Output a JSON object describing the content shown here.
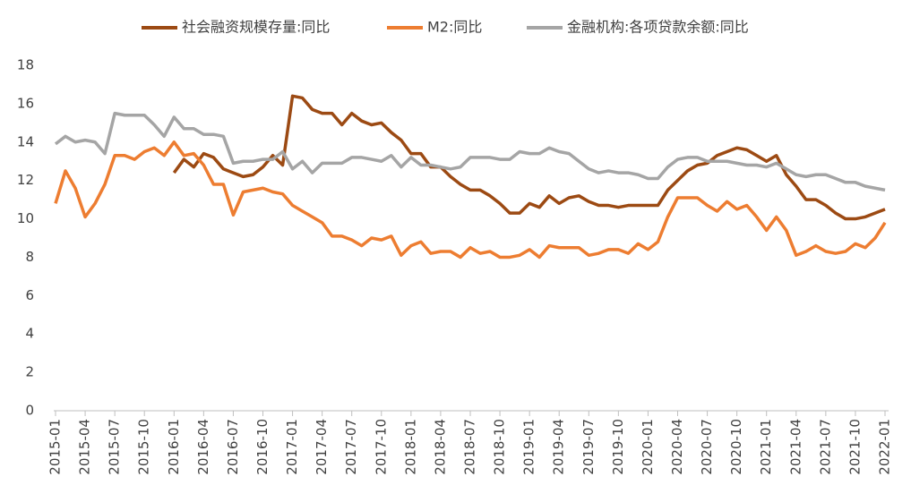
{
  "chart_data": {
    "type": "line",
    "categories": [
      "2015-01",
      null,
      null,
      "2015-04",
      null,
      null,
      "2015-07",
      null,
      null,
      "2015-10",
      null,
      null,
      "2016-01",
      null,
      null,
      "2016-04",
      null,
      null,
      "2016-07",
      null,
      null,
      "2016-10",
      null,
      null,
      "2017-01",
      null,
      null,
      "2017-04",
      null,
      null,
      "2017-07",
      null,
      null,
      "2017-10",
      null,
      null,
      "2018-01",
      null,
      null,
      "2018-04",
      null,
      null,
      "2018-07",
      null,
      null,
      "2018-10",
      null,
      null,
      "2019-01",
      null,
      null,
      "2019-04",
      null,
      null,
      "2019-07",
      null,
      null,
      "2019-10",
      null,
      null,
      "2020-01",
      null,
      null,
      "2020-04",
      null,
      null,
      "2020-07",
      null,
      null,
      "2020-10",
      null,
      null,
      "2021-01",
      null,
      null,
      "2021-04",
      null,
      null,
      "2021-07",
      null,
      null,
      "2021-10",
      null,
      null,
      "2022-01"
    ],
    "series": [
      {
        "name": "社会融资规模存量:同比",
        "color": "#9c4a13",
        "values": [
          null,
          null,
          null,
          null,
          null,
          null,
          null,
          null,
          null,
          null,
          null,
          null,
          12.4,
          13.1,
          12.7,
          13.4,
          13.2,
          12.6,
          12.4,
          12.2,
          12.3,
          12.7,
          13.3,
          12.8,
          16.4,
          16.3,
          15.7,
          15.5,
          15.5,
          14.9,
          15.5,
          15.1,
          14.9,
          15.0,
          14.5,
          14.1,
          13.4,
          13.4,
          12.7,
          12.7,
          12.2,
          11.8,
          11.5,
          11.5,
          11.2,
          10.8,
          10.3,
          10.3,
          10.8,
          10.6,
          11.2,
          10.8,
          11.1,
          11.2,
          10.9,
          10.7,
          10.7,
          10.6,
          10.7,
          10.7,
          10.7,
          10.7,
          11.5,
          12.0,
          12.5,
          12.8,
          12.9,
          13.3,
          13.5,
          13.7,
          13.6,
          13.3,
          13.0,
          13.3,
          12.3,
          11.7,
          11.0,
          11.0,
          10.7,
          10.3,
          10.0,
          10.0,
          10.1,
          10.3,
          10.5
        ]
      },
      {
        "name": "M2:同比",
        "color": "#ed7d31",
        "values": [
          10.8,
          12.5,
          11.6,
          10.1,
          10.8,
          11.8,
          13.3,
          13.3,
          13.1,
          13.5,
          13.7,
          13.3,
          14.0,
          13.3,
          13.4,
          12.8,
          11.8,
          11.8,
          10.2,
          11.4,
          11.5,
          11.6,
          11.4,
          11.3,
          10.7,
          10.4,
          10.1,
          9.8,
          9.1,
          9.1,
          8.9,
          8.6,
          9.0,
          8.9,
          9.1,
          8.1,
          8.6,
          8.8,
          8.2,
          8.3,
          8.3,
          8.0,
          8.5,
          8.2,
          8.3,
          8.0,
          8.0,
          8.1,
          8.4,
          8.0,
          8.6,
          8.5,
          8.5,
          8.5,
          8.1,
          8.2,
          8.4,
          8.4,
          8.2,
          8.7,
          8.4,
          8.8,
          10.1,
          11.1,
          11.1,
          11.1,
          10.7,
          10.4,
          10.9,
          10.5,
          10.7,
          10.1,
          9.4,
          10.1,
          9.4,
          8.1,
          8.3,
          8.6,
          8.3,
          8.2,
          8.3,
          8.7,
          8.5,
          9.0,
          9.8
        ]
      },
      {
        "name": "金融机构:各项贷款余额:同比",
        "color": "#a5a5a5",
        "values": [
          13.9,
          14.3,
          14.0,
          14.1,
          14.0,
          13.4,
          15.5,
          15.4,
          15.4,
          15.4,
          14.9,
          14.3,
          15.3,
          14.7,
          14.7,
          14.4,
          14.4,
          14.3,
          12.9,
          13.0,
          13.0,
          13.1,
          13.1,
          13.5,
          12.6,
          13.0,
          12.4,
          12.9,
          12.9,
          12.9,
          13.2,
          13.2,
          13.1,
          13.0,
          13.3,
          12.7,
          13.2,
          12.8,
          12.8,
          12.7,
          12.6,
          12.7,
          13.2,
          13.2,
          13.2,
          13.1,
          13.1,
          13.5,
          13.4,
          13.4,
          13.7,
          13.5,
          13.4,
          13.0,
          12.6,
          12.4,
          12.5,
          12.4,
          12.4,
          12.3,
          12.1,
          12.1,
          12.7,
          13.1,
          13.2,
          13.2,
          13.0,
          13.0,
          13.0,
          12.9,
          12.8,
          12.8,
          12.7,
          12.9,
          12.6,
          12.3,
          12.2,
          12.3,
          12.3,
          12.1,
          11.9,
          11.9,
          11.7,
          11.6,
          11.5
        ]
      }
    ],
    "ylim": [
      0,
      18
    ],
    "yticks": [
      0,
      2,
      4,
      6,
      8,
      10,
      12,
      14,
      16,
      18
    ]
  }
}
